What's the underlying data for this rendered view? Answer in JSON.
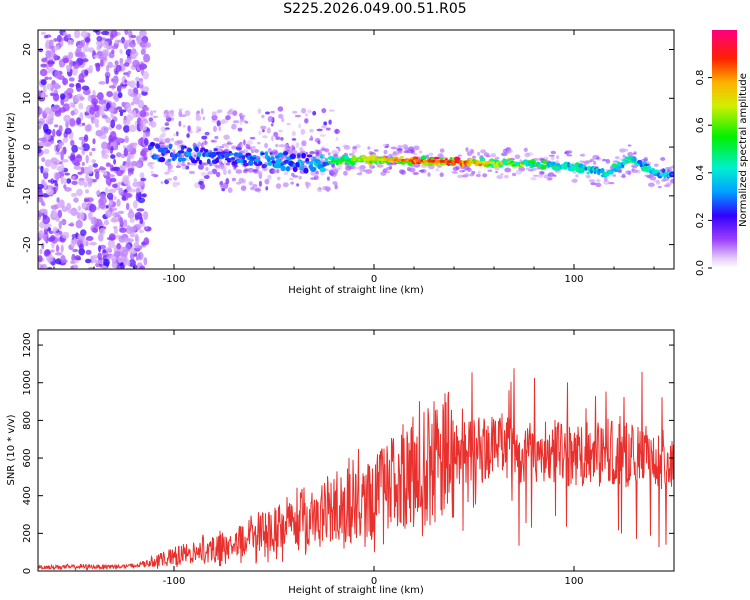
{
  "title": "S225.2026.049.00.51.R05",
  "chart_data": [
    {
      "type": "heatmap",
      "xlabel": "Height of straight line (km)",
      "ylabel": "Frequency (Hz)",
      "xlim": [
        -168,
        150
      ],
      "ylim": [
        -25,
        24
      ],
      "xticks": [
        -100,
        0,
        100
      ],
      "yticks": [
        -20,
        -10,
        0,
        10,
        20
      ],
      "colorbar": {
        "label": "Normalized spectral amplitude",
        "range": [
          0,
          1
        ],
        "ticks": [
          0.0,
          0.2,
          0.4,
          0.6,
          0.8
        ]
      },
      "ridge": [
        {
          "x": -110,
          "y": -1.0,
          "amp": 0.3
        },
        {
          "x": -90,
          "y": -1.5,
          "amp": 0.35
        },
        {
          "x": -70,
          "y": -2.0,
          "amp": 0.3
        },
        {
          "x": -50,
          "y": -2.5,
          "amp": 0.35
        },
        {
          "x": -30,
          "y": -3.5,
          "amp": 0.35
        },
        {
          "x": -20,
          "y": -2.8,
          "amp": 0.55
        },
        {
          "x": 0,
          "y": -2.5,
          "amp": 0.75
        },
        {
          "x": 20,
          "y": -2.8,
          "amp": 0.9
        },
        {
          "x": 40,
          "y": -3.0,
          "amp": 0.95
        },
        {
          "x": 60,
          "y": -3.2,
          "amp": 0.75
        },
        {
          "x": 80,
          "y": -3.5,
          "amp": 0.6
        },
        {
          "x": 100,
          "y": -4.0,
          "amp": 0.5
        },
        {
          "x": 115,
          "y": -5.5,
          "amp": 0.45
        },
        {
          "x": 128,
          "y": -2.5,
          "amp": 0.5
        },
        {
          "x": 140,
          "y": -5.0,
          "amp": 0.45
        },
        {
          "x": 150,
          "y": -6.0,
          "amp": 0.4
        }
      ]
    },
    {
      "type": "line",
      "xlabel": "Height of straight line (km)",
      "ylabel": "SNR (10 * v/v)",
      "xlim": [
        -168,
        150
      ],
      "ylim": [
        0,
        1280
      ],
      "xticks": [
        -100,
        0,
        100
      ],
      "yticks": [
        0,
        200,
        400,
        600,
        800,
        1000,
        1200
      ],
      "color": "#e8302d",
      "envelope": [
        {
          "x": -168,
          "y": 20
        },
        {
          "x": -120,
          "y": 25
        },
        {
          "x": -100,
          "y": 80
        },
        {
          "x": -80,
          "y": 120
        },
        {
          "x": -60,
          "y": 180
        },
        {
          "x": -40,
          "y": 260
        },
        {
          "x": -20,
          "y": 330
        },
        {
          "x": 0,
          "y": 380
        },
        {
          "x": 20,
          "y": 520
        },
        {
          "x": 40,
          "y": 620
        },
        {
          "x": 60,
          "y": 660
        },
        {
          "x": 80,
          "y": 640
        },
        {
          "x": 100,
          "y": 620
        },
        {
          "x": 120,
          "y": 620
        },
        {
          "x": 140,
          "y": 600
        },
        {
          "x": 150,
          "y": 580
        }
      ]
    }
  ]
}
